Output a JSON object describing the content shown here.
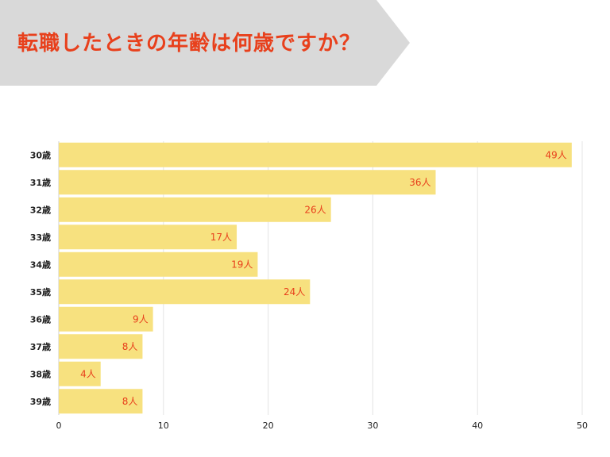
{
  "header": {
    "title": "転職したときの年齢は何歳ですか？"
  },
  "colors": {
    "banner": "#d9d9d9",
    "title": "#e8401c",
    "bar": "#f7e17f",
    "label": "#e8401c",
    "grid": "#e4e4e4"
  },
  "chart_data": {
    "type": "bar",
    "orientation": "horizontal",
    "title": "転職したときの年齢は何歳ですか？",
    "categories": [
      "30歳",
      "31歳",
      "32歳",
      "33歳",
      "34歳",
      "35歳",
      "36歳",
      "37歳",
      "38歳",
      "39歳"
    ],
    "values": [
      49,
      36,
      26,
      17,
      19,
      24,
      9,
      8,
      4,
      8
    ],
    "data_labels": [
      "49人",
      "36人",
      "26人",
      "17人",
      "19人",
      "24人",
      "9人",
      "8人",
      "4人",
      "8人"
    ],
    "xlim": [
      0,
      50
    ],
    "xticks": [
      "0",
      "10",
      "20",
      "30",
      "40",
      "50"
    ],
    "grid": true,
    "legend": "none"
  }
}
